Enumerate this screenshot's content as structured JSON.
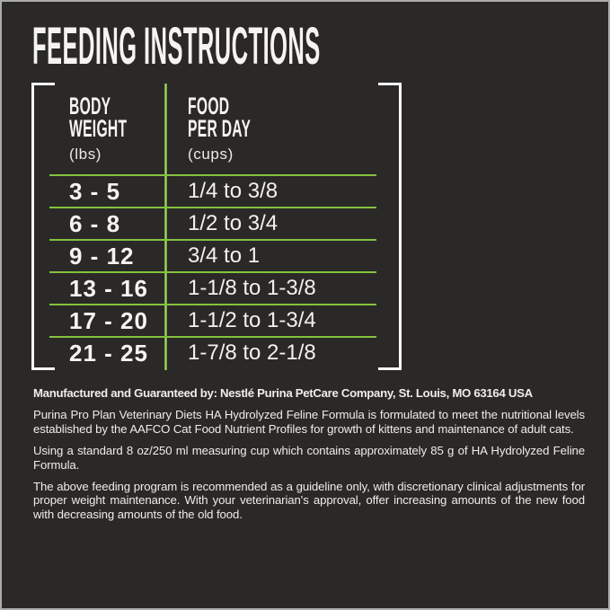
{
  "theme": {
    "bg": "#2a2927",
    "fg": "#f5f4f2",
    "green": "#84c23e",
    "green_bright": "#b9e07a",
    "frame": "#ababab"
  },
  "title": "FEEDING INSTRUCTIONS",
  "table": {
    "columns": [
      {
        "label": "BODY\nWEIGHT",
        "unit": "(lbs)"
      },
      {
        "label": "FOOD\nPER DAY",
        "unit": "(cups)"
      }
    ],
    "rows": [
      {
        "body_weight_lbs": "3 - 5",
        "food_per_day_cups": "1/4 to 3/8"
      },
      {
        "body_weight_lbs": "6 - 8",
        "food_per_day_cups": "1/2 to 3/4"
      },
      {
        "body_weight_lbs": "9 - 12",
        "food_per_day_cups": "3/4 to 1"
      },
      {
        "body_weight_lbs": "13 - 16",
        "food_per_day_cups": "1-1/8 to 1-3/8"
      },
      {
        "body_weight_lbs": "17 - 20",
        "food_per_day_cups": "1-1/2 to 1-3/4"
      },
      {
        "body_weight_lbs": "21 - 25",
        "food_per_day_cups": "1-7/8 to 2-1/8"
      }
    ]
  },
  "footer": {
    "manufactured_line": "Manufactured and Guaranteed by: Nestlé Purina PetCare Company, St. Louis, MO 63164 USA",
    "paragraphs": [
      "Purina Pro Plan Veterinary Diets HA Hydrolyzed Feline Formula is formulated to meet the nutritional levels established by the AAFCO Cat Food Nutrient Profiles for growth of kittens and maintenance of adult cats.",
      "Using a standard 8 oz/250 ml measuring cup which contains approximately 85 g of HA Hydrolyzed Feline Formula.",
      "The above feeding program is recommended as a guideline only, with discretionary clinical adjustments for proper weight maintenance. With your veterinarian's approval, offer increasing amounts of the new food with decreasing amounts of the old food."
    ]
  }
}
